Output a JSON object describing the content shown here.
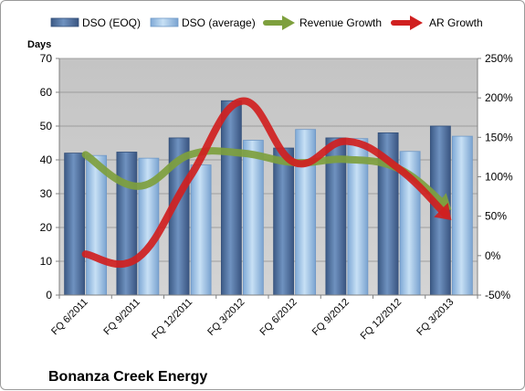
{
  "chart_data": {
    "type": "bar",
    "title": "Bonanza Creek Energy",
    "ylabel": "Days",
    "ylim": [
      0,
      70
    ],
    "y2lim": [
      -50,
      250
    ],
    "y_ticks": [
      "0",
      "10",
      "20",
      "30",
      "40",
      "50",
      "60",
      "70"
    ],
    "y2_ticks": [
      "-50%",
      "0%",
      "50%",
      "100%",
      "150%",
      "200%",
      "250%"
    ],
    "categories": [
      "FQ 6/2011",
      "FQ 9/2011",
      "FQ 12/2011",
      "FQ 3/2012",
      "FQ 6/2012",
      "FQ 9/2012",
      "FQ 12/2012",
      "FQ 3/2013"
    ],
    "grid": true,
    "legend_position": "top",
    "series": [
      {
        "name": "DSO (EOQ)",
        "kind": "bar",
        "color": "#4f6f9f",
        "values": [
          42,
          42.3,
          46.5,
          57.5,
          43.5,
          46.5,
          48,
          50
        ]
      },
      {
        "name": "DSO (average)",
        "kind": "bar",
        "color": "#9bc4e6",
        "values": [
          41.3,
          40.5,
          38.5,
          45.8,
          49,
          46.3,
          42.5,
          47
        ]
      },
      {
        "name": "Revenue Growth",
        "kind": "line",
        "axis": "right",
        "color": "#7ea03e",
        "values": [
          128,
          88,
          128,
          130,
          118,
          122,
          110,
          58
        ]
      },
      {
        "name": "AR Growth",
        "kind": "line",
        "axis": "right",
        "color": "#d02020",
        "values": [
          2,
          -3,
          100,
          196,
          118,
          145,
          110,
          45
        ]
      }
    ]
  }
}
